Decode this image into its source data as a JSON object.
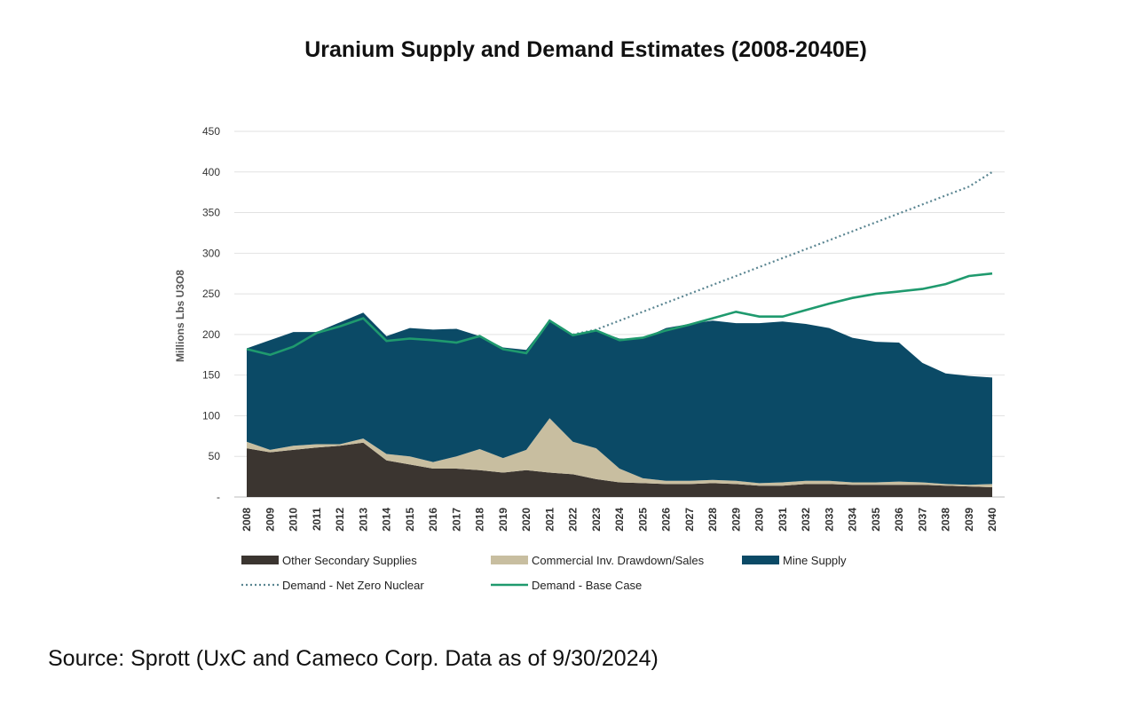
{
  "chart_data": {
    "type": "area",
    "title": "Uranium Supply and Demand Estimates (2008-2040E)",
    "ylabel": "Millions Lbs U3O8",
    "xlabel": "",
    "ylim": [
      0,
      450
    ],
    "yticks": [
      "-",
      "50",
      "100",
      "150",
      "200",
      "250",
      "300",
      "350",
      "400",
      "450"
    ],
    "grid": true,
    "legend_position": "bottom",
    "x": [
      2008,
      2009,
      2010,
      2011,
      2012,
      2013,
      2014,
      2015,
      2016,
      2017,
      2018,
      2019,
      2020,
      2021,
      2022,
      2023,
      2024,
      2025,
      2026,
      2027,
      2028,
      2029,
      2030,
      2031,
      2032,
      2033,
      2034,
      2035,
      2036,
      2037,
      2038,
      2039,
      2040
    ],
    "series": [
      {
        "name": "Other Secondary Supplies",
        "kind": "stacked-area",
        "color": "#3b3530",
        "values": [
          60,
          55,
          58,
          61,
          63,
          67,
          45,
          40,
          35,
          35,
          33,
          30,
          33,
          30,
          28,
          22,
          18,
          17,
          16,
          16,
          17,
          16,
          14,
          14,
          16,
          16,
          15,
          15,
          15,
          15,
          14,
          13,
          12
        ]
      },
      {
        "name": "Commercial Inv. Drawdown/Sales",
        "kind": "stacked-area",
        "color": "#c8bea0",
        "values": [
          8,
          3,
          5,
          4,
          2,
          5,
          8,
          10,
          8,
          15,
          26,
          18,
          25,
          67,
          40,
          38,
          17,
          6,
          4,
          4,
          4,
          4,
          3,
          4,
          4,
          4,
          3,
          3,
          4,
          3,
          2,
          2,
          4
        ]
      },
      {
        "name": "Mine Supply",
        "kind": "stacked-area",
        "color": "#0b4a66",
        "values": [
          115,
          135,
          140,
          138,
          150,
          155,
          145,
          158,
          163,
          157,
          139,
          136,
          123,
          121,
          130,
          145,
          160,
          172,
          188,
          193,
          196,
          194,
          197,
          198,
          193,
          188,
          178,
          173,
          171,
          147,
          136,
          134,
          131
        ]
      },
      {
        "name": "Demand - Net Zero Nuclear",
        "kind": "dotted-line",
        "color": "#5a8591",
        "values": [
          null,
          null,
          null,
          null,
          null,
          null,
          null,
          null,
          null,
          null,
          null,
          null,
          null,
          null,
          200,
          206,
          217,
          228,
          239,
          250,
          261,
          272,
          283,
          294,
          305,
          316,
          327,
          338,
          349,
          360,
          371,
          382,
          400
        ]
      },
      {
        "name": "Demand - Base Case",
        "kind": "line",
        "color": "#1f9a6e",
        "values": [
          182,
          175,
          185,
          202,
          210,
          220,
          192,
          195,
          193,
          190,
          198,
          182,
          177,
          217,
          199,
          205,
          193,
          196,
          205,
          212,
          220,
          228,
          222,
          222,
          230,
          238,
          245,
          250,
          253,
          256,
          262,
          272,
          275
        ]
      }
    ]
  },
  "source": "Source: Sprott (UxC and Cameco Corp. Data as of 9/30/2024)"
}
